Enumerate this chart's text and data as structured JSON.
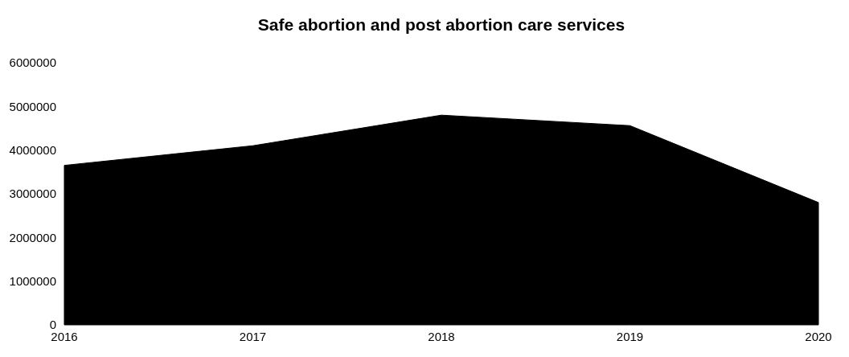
{
  "chart_data": {
    "type": "area",
    "title": "Safe abortion and post abortion care services",
    "categories": [
      "2016",
      "2017",
      "2018",
      "2019",
      "2020"
    ],
    "values": [
      3650000,
      4100000,
      4800000,
      4560000,
      2800000
    ],
    "color": "#000000",
    "ylim": [
      0,
      6000000
    ],
    "yticks": [
      0,
      1000000,
      2000000,
      3000000,
      4000000,
      5000000,
      6000000
    ],
    "grid": false
  }
}
